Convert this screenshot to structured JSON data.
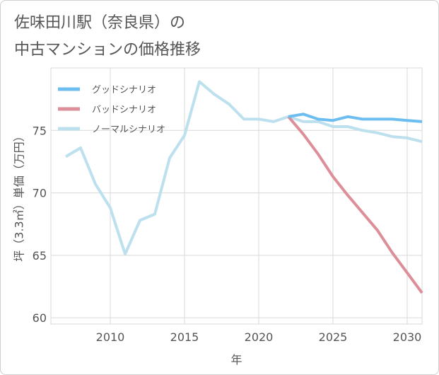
{
  "chart_data": {
    "type": "line",
    "title_lines": [
      "佐味田川駅（奈良県）の",
      "中古マンションの価格推移"
    ],
    "xlabel": "年",
    "ylabel": "坪（3.3㎡）単価（万円）",
    "xlim": [
      2006,
      2031
    ],
    "ylim": [
      59.5,
      80
    ],
    "x_ticks": [
      2010,
      2015,
      2020,
      2025,
      2030
    ],
    "y_ticks": [
      60,
      65,
      70,
      75
    ],
    "grid": true,
    "legend_position": "top-left",
    "series": [
      {
        "name": "グッドシナリオ",
        "color": "#6cbdf0",
        "x": [
          2022,
          2023,
          2024,
          2025,
          2026,
          2027,
          2028,
          2029,
          2030,
          2031
        ],
        "values": [
          76.1,
          76.3,
          75.9,
          75.8,
          76.1,
          75.9,
          75.9,
          75.9,
          75.8,
          75.7
        ]
      },
      {
        "name": "バッドシナリオ",
        "color": "#dc8f98",
        "x": [
          2022,
          2023,
          2024,
          2025,
          2026,
          2027,
          2028,
          2029,
          2030,
          2031
        ],
        "values": [
          76.1,
          74.7,
          73.1,
          71.3,
          69.8,
          68.4,
          67.0,
          65.2,
          63.6,
          62.0
        ]
      },
      {
        "name": "ノーマルシナリオ",
        "color": "#bde0ee",
        "x": [
          2007,
          2008,
          2009,
          2010,
          2011,
          2012,
          2013,
          2014,
          2015,
          2016,
          2017,
          2018,
          2019,
          2020,
          2021,
          2022,
          2023,
          2024,
          2025,
          2026,
          2027,
          2028,
          2029,
          2030,
          2031
        ],
        "values": [
          72.9,
          73.6,
          70.7,
          68.8,
          65.1,
          67.8,
          68.3,
          72.8,
          74.6,
          78.9,
          77.9,
          77.1,
          75.9,
          75.9,
          75.7,
          76.1,
          75.7,
          75.7,
          75.3,
          75.3,
          75.0,
          74.8,
          74.5,
          74.4,
          74.1
        ]
      }
    ]
  }
}
